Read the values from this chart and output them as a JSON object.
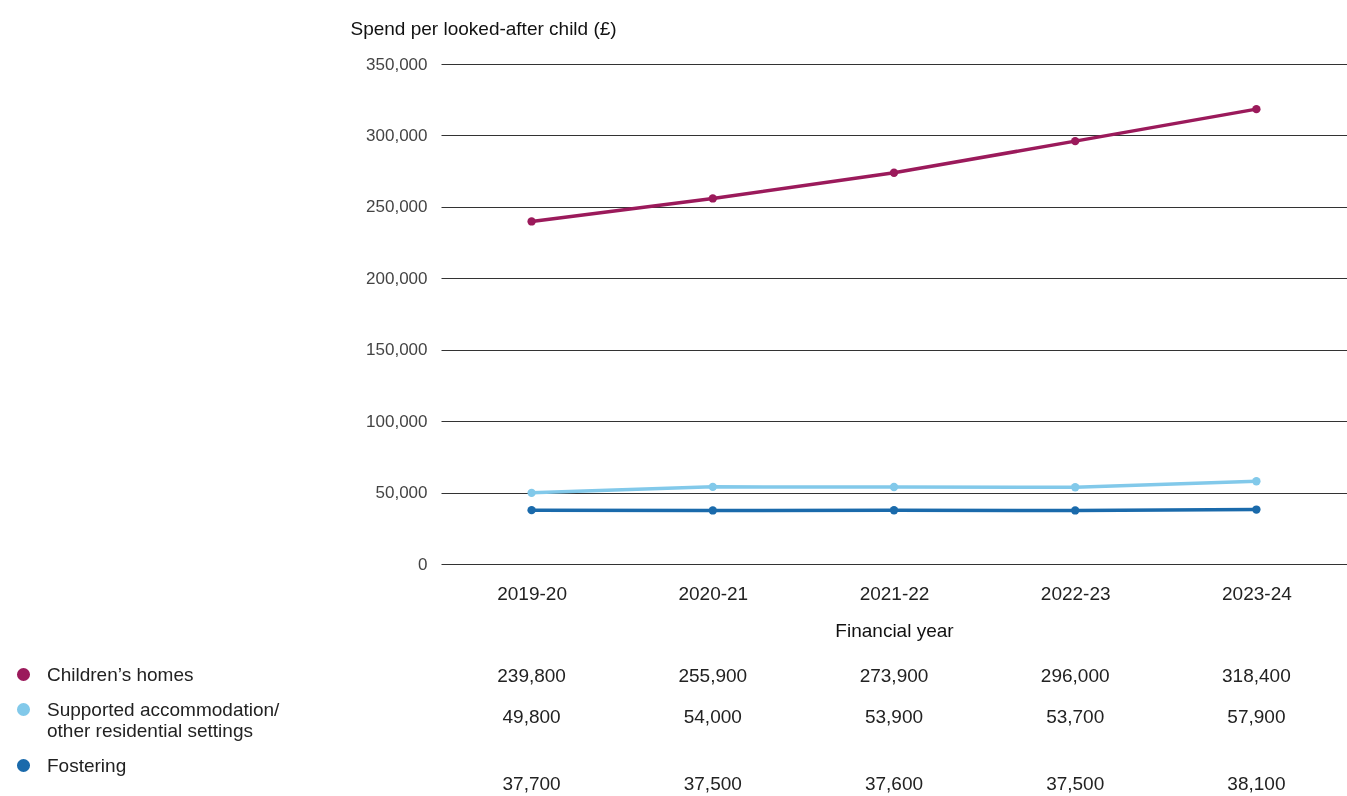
{
  "chart_data": {
    "type": "line",
    "ylabel": "Spend per looked-after child (£)",
    "xlabel": "Financial year",
    "categories": [
      "2019-20",
      "2020-21",
      "2021-22",
      "2022-23",
      "2023-24"
    ],
    "series": [
      {
        "name": "Children’s homes",
        "color": "#9b1a5b",
        "values": [
          239800,
          255900,
          273900,
          296000,
          318400
        ],
        "value_labels": [
          "239,800",
          "255,900",
          "273,900",
          "296,000",
          "318,400"
        ]
      },
      {
        "name": "Supported accommodation/ other residential settings",
        "color": "#82c9ea",
        "values": [
          49800,
          54000,
          53900,
          53700,
          57900
        ],
        "value_labels": [
          "49,800",
          "54,000",
          "53,900",
          "53,700",
          "57,900"
        ]
      },
      {
        "name": "Fostering",
        "color": "#1a6aab",
        "values": [
          37700,
          37500,
          37600,
          37500,
          38100
        ],
        "value_labels": [
          "37,700",
          "37,500",
          "37,600",
          "37,500",
          "38,100"
        ]
      }
    ],
    "ylim": [
      0,
      350000
    ],
    "yticks": [
      0,
      {
        "value": 50000,
        "label": "50,000"
      },
      {
        "value": 100000,
        "label": "100,000"
      },
      {
        "value": 150000,
        "label": "150,000"
      },
      {
        "value": 200000,
        "label": "200,000"
      },
      {
        "value": 250000,
        "label": "250,000"
      },
      {
        "value": 300000,
        "label": "300,000"
      },
      {
        "value": 350000,
        "label": "350,000"
      }
    ],
    "grid": "y",
    "legend": "bottom left",
    "marker": "circle",
    "line_style": "solid"
  }
}
